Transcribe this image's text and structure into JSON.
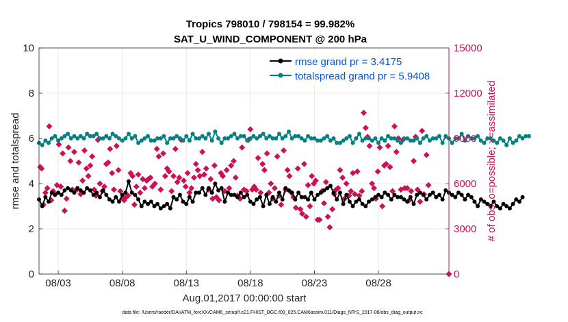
{
  "chart_data": {
    "type": "line",
    "title_line1": "Tropics 798010 / 798154 = 99.982%",
    "title_line2": "SAT_U_WIND_COMPONENT @ 200 hPa",
    "xlabel": "Aug.01,2017 00:00:00 start",
    "ylabel_left": "rmse and totalspread",
    "ylabel_right": "# of obs: o=possible; ×=assimilated",
    "xlim": [
      1.5,
      33.5
    ],
    "ylim_left": [
      0,
      10
    ],
    "ylim_right": [
      0,
      15000
    ],
    "x_ticks": [
      {
        "label": "08/03",
        "value": 3
      },
      {
        "label": "08/08",
        "value": 8
      },
      {
        "label": "08/13",
        "value": 13
      },
      {
        "label": "08/18",
        "value": 18
      },
      {
        "label": "08/23",
        "value": 23
      },
      {
        "label": "08/28",
        "value": 28
      }
    ],
    "y_ticks_left": [
      {
        "label": "0",
        "value": 0
      },
      {
        "label": "2",
        "value": 2
      },
      {
        "label": "4",
        "value": 4
      },
      {
        "label": "6",
        "value": 6
      },
      {
        "label": "8",
        "value": 8
      },
      {
        "label": "10",
        "value": 10
      }
    ],
    "y_ticks_right": [
      {
        "label": "0",
        "value": 0
      },
      {
        "label": "3000",
        "value": 3000
      },
      {
        "label": "6000",
        "value": 6000
      },
      {
        "label": "9000",
        "value": 9000
      },
      {
        "label": "12000",
        "value": 12000
      },
      {
        "label": "15000",
        "value": 15000
      }
    ],
    "x_start": 1.5,
    "x_step": 0.25,
    "series": [
      {
        "name": "rmse",
        "legend": "rmse grand pr = 3.4175",
        "color": "#000000",
        "values": [
          3.3,
          3.0,
          3.4,
          3.2,
          3.6,
          3.5,
          3.6,
          3.5,
          3.7,
          3.8,
          3.7,
          3.6,
          3.8,
          3.7,
          3.6,
          3.8,
          3.7,
          3.5,
          3.6,
          3.4,
          3.7,
          3.5,
          3.3,
          3.2,
          3.4,
          3.2,
          3.5,
          3.6,
          4.1,
          3.6,
          3.5,
          3.3,
          3.0,
          3.2,
          3.1,
          3.2,
          3.0,
          3.1,
          2.9,
          3.0,
          3.1,
          2.9,
          3.4,
          3.3,
          3.5,
          3.2,
          3.1,
          3.4,
          3.2,
          3.6,
          3.6,
          3.8,
          3.5,
          3.8,
          3.6,
          4.0,
          3.7,
          3.8,
          3.2,
          3.6,
          3.5,
          3.5,
          3.4,
          3.6,
          3.4,
          3.5,
          3.2,
          3.1,
          3.3,
          3.4,
          3.0,
          3.5,
          3.1,
          3.4,
          3.2,
          3.6,
          3.3,
          3.8,
          3.7,
          3.6,
          3.3,
          3.6,
          3.4,
          3.4,
          3.3,
          3.6,
          3.3,
          3.5,
          3.6,
          3.7,
          3.8,
          3.9,
          3.6,
          3.3,
          3.6,
          3.1,
          3.5,
          3.2,
          3.0,
          3.2,
          3.3,
          3.1,
          3.0,
          3.2,
          3.3,
          3.4,
          3.5,
          3.4,
          3.6,
          3.5,
          3.3,
          3.5,
          3.4,
          3.4,
          3.3,
          3.2,
          3.4,
          3.1,
          3.5,
          3.6,
          3.5,
          3.3,
          3.5,
          3.6,
          3.4,
          3.5,
          3.3,
          3.7,
          3.6,
          3.5,
          3.4,
          3.6,
          3.5,
          3.3,
          3.5,
          3.4,
          3.2,
          3.0,
          3.3,
          3.2,
          3.1,
          3.0,
          3.2,
          3.0,
          2.9,
          3.1,
          3.0,
          2.9,
          3.1,
          3.3,
          3.2,
          3.4
        ]
      },
      {
        "name": "totalspread",
        "legend": "totalspread grand pr = 5.9408",
        "color": "#008080",
        "values": [
          5.8,
          5.7,
          5.9,
          5.8,
          6.0,
          6.1,
          5.9,
          6.0,
          6.1,
          6.2,
          6.0,
          6.1,
          6.0,
          6.1,
          6.0,
          6.2,
          6.1,
          6.1,
          6.2,
          6.0,
          6.0,
          6.1,
          6.0,
          6.2,
          6.1,
          6.0,
          5.9,
          6.0,
          6.2,
          6.0,
          6.1,
          5.8,
          5.9,
          6.0,
          6.1,
          5.9,
          5.9,
          6.0,
          6.0,
          6.1,
          5.8,
          6.0,
          6.0,
          6.1,
          6.0,
          5.9,
          6.1,
          5.9,
          6.2,
          6.0,
          6.0,
          6.1,
          6.0,
          6.2,
          5.9,
          6.3,
          6.0,
          5.8,
          6.0,
          6.0,
          6.1,
          6.2,
          6.0,
          6.1,
          6.1,
          5.9,
          6.0,
          6.1,
          6.0,
          6.1,
          6.2,
          6.0,
          6.1,
          6.0,
          6.0,
          6.2,
          6.0,
          6.1,
          6.3,
          6.0,
          6.1,
          6.1,
          6.0,
          5.9,
          6.1,
          6.0,
          6.0,
          5.9,
          5.9,
          6.0,
          6.1,
          5.9,
          6.0,
          5.8,
          5.8,
          5.9,
          6.0,
          6.1,
          5.8,
          6.0,
          6.2,
          5.9,
          6.0,
          6.0,
          5.9,
          6.0,
          5.8,
          6.0,
          5.9,
          6.1,
          6.0,
          6.0,
          5.9,
          5.8,
          6.0,
          6.0,
          5.9,
          5.9,
          6.0,
          5.8,
          6.0,
          6.1,
          5.9,
          6.0,
          6.0,
          6.1,
          5.8,
          6.1,
          6.0,
          5.8,
          6.0,
          6.0,
          6.2,
          5.9,
          6.1,
          6.0,
          6.0,
          6.1,
          5.9,
          5.8,
          6.0,
          6.0,
          5.9,
          5.8,
          6.0,
          5.9,
          5.7,
          6.0,
          5.8,
          5.9,
          6.1,
          6.0,
          6.1,
          6.1
        ]
      }
    ],
    "obs": {
      "name": "assimilated",
      "color": "#cc1155",
      "points": [
        [
          1.6,
          7100
        ],
        [
          1.7,
          7000
        ],
        [
          1.85,
          4600
        ],
        [
          2.0,
          5400
        ],
        [
          2.15,
          5700
        ],
        [
          2.3,
          9800
        ],
        [
          2.45,
          4900
        ],
        [
          2.6,
          5500
        ],
        [
          2.75,
          5300
        ],
        [
          2.9,
          5900
        ],
        [
          3.05,
          8600
        ],
        [
          3.2,
          5800
        ],
        [
          3.35,
          8000
        ],
        [
          3.5,
          4200
        ],
        [
          3.65,
          5000
        ],
        [
          3.8,
          8400
        ],
        [
          3.95,
          7500
        ],
        [
          4.1,
          5600
        ],
        [
          4.25,
          8100
        ],
        [
          4.45,
          5600
        ],
        [
          4.6,
          7400
        ],
        [
          4.75,
          5300
        ],
        [
          4.9,
          6200
        ],
        [
          5.05,
          8200
        ],
        [
          5.2,
          7000
        ],
        [
          5.35,
          6500
        ],
        [
          5.5,
          7200
        ],
        [
          5.65,
          7800
        ],
        [
          5.8,
          5600
        ],
        [
          5.95,
          5200
        ],
        [
          6.1,
          8900
        ],
        [
          6.25,
          6000
        ],
        [
          6.45,
          5500
        ],
        [
          6.6,
          5800
        ],
        [
          6.75,
          7300
        ],
        [
          6.9,
          7400
        ],
        [
          7.05,
          8300
        ],
        [
          7.2,
          6700
        ],
        [
          7.35,
          5600
        ],
        [
          7.55,
          8500
        ],
        [
          7.7,
          6900
        ],
        [
          7.85,
          5500
        ],
        [
          8.0,
          5000
        ],
        [
          8.15,
          4900
        ],
        [
          8.3,
          5100
        ],
        [
          8.45,
          5200
        ],
        [
          8.65,
          6700
        ],
        [
          8.8,
          6500
        ],
        [
          8.95,
          4600
        ],
        [
          9.1,
          5800
        ],
        [
          9.25,
          6600
        ],
        [
          9.4,
          5400
        ],
        [
          9.6,
          6300
        ],
        [
          9.75,
          5700
        ],
        [
          9.9,
          6200
        ],
        [
          10.05,
          6300
        ],
        [
          10.2,
          6400
        ],
        [
          10.35,
          5800
        ],
        [
          10.55,
          6000
        ],
        [
          10.7,
          8300
        ],
        [
          10.85,
          7800
        ],
        [
          11.0,
          5600
        ],
        [
          11.2,
          8000
        ],
        [
          11.35,
          6500
        ],
        [
          11.5,
          7000
        ],
        [
          11.65,
          6800
        ],
        [
          11.85,
          5500
        ],
        [
          12.0,
          6500
        ],
        [
          12.15,
          8300
        ],
        [
          12.3,
          6100
        ],
        [
          12.45,
          6400
        ],
        [
          12.6,
          8900
        ],
        [
          12.8,
          6200
        ],
        [
          12.95,
          5800
        ],
        [
          13.1,
          6700
        ],
        [
          13.25,
          5400
        ],
        [
          13.4,
          5700
        ],
        [
          13.6,
          6400
        ],
        [
          13.75,
          7300
        ],
        [
          13.9,
          6900
        ],
        [
          14.05,
          6500
        ],
        [
          14.25,
          8100
        ],
        [
          14.4,
          6600
        ],
        [
          14.55,
          7000
        ],
        [
          14.75,
          5600
        ],
        [
          14.9,
          6300
        ],
        [
          15.05,
          5000
        ],
        [
          15.2,
          7200
        ],
        [
          15.35,
          5100
        ],
        [
          15.55,
          4900
        ],
        [
          15.7,
          6700
        ],
        [
          15.85,
          6500
        ],
        [
          16.0,
          5500
        ],
        [
          16.15,
          6900
        ],
        [
          16.35,
          5700
        ],
        [
          16.5,
          7200
        ],
        [
          16.7,
          7500
        ],
        [
          16.85,
          6400
        ],
        [
          17.0,
          5200
        ],
        [
          17.2,
          5000
        ],
        [
          17.35,
          8400
        ],
        [
          17.5,
          5600
        ],
        [
          17.7,
          5500
        ],
        [
          17.85,
          8900
        ],
        [
          18.0,
          9600
        ],
        [
          18.15,
          5600
        ],
        [
          18.3,
          5800
        ],
        [
          18.45,
          5600
        ],
        [
          18.6,
          7700
        ],
        [
          18.8,
          5400
        ],
        [
          18.95,
          7300
        ],
        [
          19.1,
          6900
        ],
        [
          19.3,
          8000
        ],
        [
          19.45,
          5400
        ],
        [
          19.6,
          6000
        ],
        [
          19.75,
          5000
        ],
        [
          19.9,
          5700
        ],
        [
          20.1,
          7800
        ],
        [
          20.25,
          5200
        ],
        [
          20.4,
          4600
        ],
        [
          20.6,
          8200
        ],
        [
          20.75,
          5600
        ],
        [
          20.9,
          6900
        ],
        [
          21.05,
          6500
        ],
        [
          21.2,
          5400
        ],
        [
          21.35,
          5100
        ],
        [
          21.55,
          4400
        ],
        [
          21.7,
          7000
        ],
        [
          21.9,
          4300
        ],
        [
          22.05,
          4000
        ],
        [
          22.2,
          7300
        ],
        [
          22.35,
          3800
        ],
        [
          22.5,
          5900
        ],
        [
          22.65,
          4500
        ],
        [
          22.8,
          6500
        ],
        [
          22.95,
          6000
        ],
        [
          23.1,
          6200
        ],
        [
          23.25,
          3600
        ],
        [
          23.4,
          3600
        ],
        [
          23.6,
          5500
        ],
        [
          23.75,
          4700
        ],
        [
          23.9,
          6100
        ],
        [
          24.05,
          3800
        ],
        [
          24.2,
          3100
        ],
        [
          24.4,
          4300
        ],
        [
          24.55,
          5300
        ],
        [
          24.7,
          5600
        ],
        [
          24.85,
          5700
        ],
        [
          25.0,
          6900
        ],
        [
          25.2,
          6400
        ],
        [
          25.35,
          5000
        ],
        [
          25.5,
          6000
        ],
        [
          25.7,
          5200
        ],
        [
          25.85,
          5500
        ],
        [
          26.0,
          6700
        ],
        [
          26.15,
          5300
        ],
        [
          26.35,
          6800
        ],
        [
          26.5,
          5200
        ],
        [
          26.7,
          5500
        ],
        [
          26.85,
          10700
        ],
        [
          27.0,
          9700
        ],
        [
          27.15,
          9100
        ],
        [
          27.3,
          8500
        ],
        [
          27.5,
          6000
        ],
        [
          27.65,
          5700
        ],
        [
          27.8,
          5000
        ],
        [
          27.95,
          6800
        ],
        [
          28.1,
          8400
        ],
        [
          28.3,
          4500
        ],
        [
          28.45,
          7200
        ],
        [
          28.6,
          7300
        ],
        [
          28.75,
          8500
        ],
        [
          28.9,
          7100
        ],
        [
          29.1,
          5500
        ],
        [
          29.25,
          9800
        ],
        [
          29.4,
          8100
        ],
        [
          29.55,
          9000
        ],
        [
          29.75,
          5600
        ],
        [
          29.9,
          8900
        ],
        [
          30.05,
          5700
        ],
        [
          30.25,
          5700
        ],
        [
          30.4,
          4900
        ],
        [
          30.55,
          5500
        ],
        [
          30.75,
          7500
        ],
        [
          30.9,
          9100
        ],
        [
          31.05,
          5600
        ],
        [
          31.25,
          4800
        ],
        [
          31.4,
          9500
        ],
        [
          31.55,
          5300
        ],
        [
          31.75,
          7900
        ],
        [
          31.9,
          5900
        ]
      ],
      "outlier": [
        33.5,
        0
      ]
    },
    "footer": "data file: /Users/raeder/DAI/ATM_forcXX/CAM6_setup/f.e21.FHIST_BGC.f09_025.CAM6assim.011/Diags_NTrS_2017-08/obs_diag_output.nc"
  }
}
